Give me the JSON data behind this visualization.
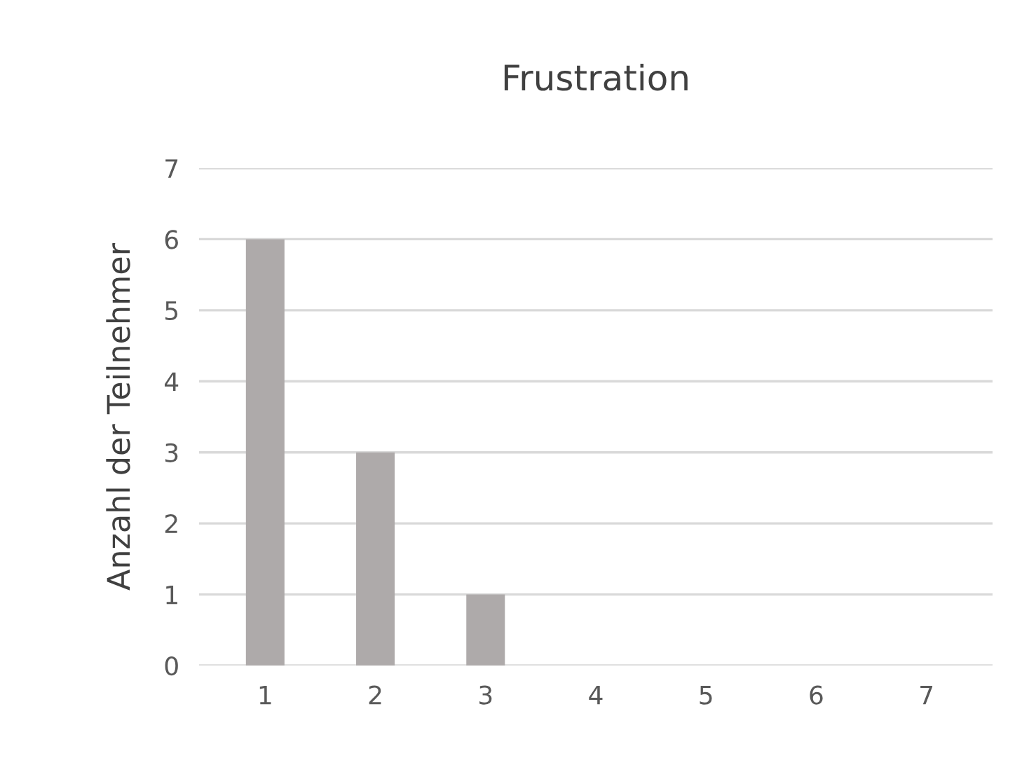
{
  "chart_data": {
    "type": "bar",
    "title": "Frustration",
    "ylabel": "Anzahl der Teilnehmer",
    "categories": [
      "1",
      "2",
      "3",
      "4",
      "5",
      "6",
      "7"
    ],
    "values": [
      6,
      3,
      1,
      0,
      0,
      0,
      0
    ],
    "color": "#aeaaaa",
    "ylim": [
      0,
      7
    ],
    "yticks": [
      0,
      1,
      2,
      3,
      4,
      5,
      6,
      7
    ],
    "grid": "y",
    "legend": false
  }
}
